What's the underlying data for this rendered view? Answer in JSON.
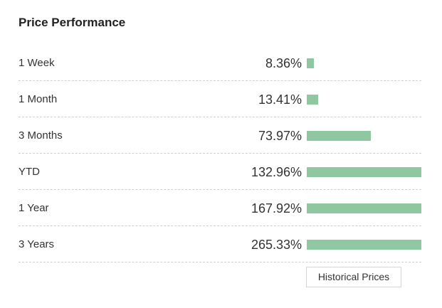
{
  "title": "Price Performance",
  "accent_color": "#8fc8a0",
  "bar_scale_max_percent": 132.96,
  "rows": [
    {
      "label": "1 Week",
      "value": "8.36%",
      "percent": 8.36
    },
    {
      "label": "1 Month",
      "value": "13.41%",
      "percent": 13.41
    },
    {
      "label": "3 Months",
      "value": "73.97%",
      "percent": 73.97
    },
    {
      "label": "YTD",
      "value": "132.96%",
      "percent": 132.96
    },
    {
      "label": "1 Year",
      "value": "167.92%",
      "percent": 167.92
    },
    {
      "label": "3 Years",
      "value": "265.33%",
      "percent": 265.33
    }
  ],
  "historical_button_label": "Historical Prices"
}
